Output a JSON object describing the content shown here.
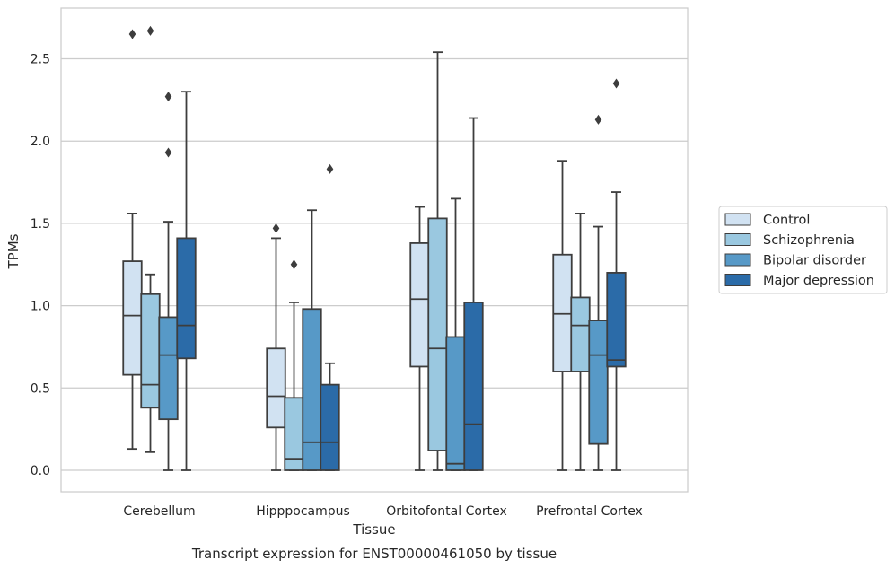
{
  "chart_data": {
    "type": "box",
    "title": "",
    "caption": "Transcript expression for ENST00000461050 by tissue",
    "xlabel": "Tissue",
    "ylabel": "TPMs",
    "ylim": [
      -0.13,
      2.8
    ],
    "yticks": [
      0.0,
      0.5,
      1.0,
      1.5,
      2.0,
      2.5
    ],
    "ytick_labels": [
      "0.0",
      "0.5",
      "1.0",
      "1.5",
      "2.0",
      "2.5"
    ],
    "grid": "horizontal",
    "legend_position": "right",
    "categories": [
      "Cerebellum",
      "Hipppocampus",
      "Orbitofontal Cortex",
      "Prefrontal Cortex"
    ],
    "series": [
      {
        "name": "Control",
        "color": "#d1e2f2",
        "boxes": [
          {
            "whislo": 0.13,
            "q1": 0.58,
            "med": 0.94,
            "q3": 1.27,
            "whishi": 1.56,
            "fliers": [
              2.65
            ]
          },
          {
            "whislo": 0.0,
            "q1": 0.26,
            "med": 0.45,
            "q3": 0.74,
            "whishi": 1.41,
            "fliers": [
              1.47
            ]
          },
          {
            "whislo": 0.0,
            "q1": 0.63,
            "med": 1.04,
            "q3": 1.38,
            "whishi": 1.6,
            "fliers": []
          },
          {
            "whislo": 0.0,
            "q1": 0.6,
            "med": 0.95,
            "q3": 1.31,
            "whishi": 1.88,
            "fliers": []
          }
        ]
      },
      {
        "name": "Schizophrenia",
        "color": "#9ac8e0",
        "boxes": [
          {
            "whislo": 0.11,
            "q1": 0.38,
            "med": 0.52,
            "q3": 1.07,
            "whishi": 1.19,
            "fliers": [
              2.67
            ]
          },
          {
            "whislo": 0.0,
            "q1": 0.0,
            "med": 0.07,
            "q3": 0.44,
            "whishi": 1.02,
            "fliers": [
              1.25
            ]
          },
          {
            "whislo": 0.0,
            "q1": 0.12,
            "med": 0.74,
            "q3": 1.53,
            "whishi": 2.54,
            "fliers": []
          },
          {
            "whislo": 0.0,
            "q1": 0.6,
            "med": 0.88,
            "q3": 1.05,
            "whishi": 1.56,
            "fliers": []
          }
        ]
      },
      {
        "name": "Bipolar disorder",
        "color": "#5799c7",
        "boxes": [
          {
            "whislo": 0.0,
            "q1": 0.31,
            "med": 0.7,
            "q3": 0.93,
            "whishi": 1.51,
            "fliers": [
              1.93,
              2.27
            ]
          },
          {
            "whislo": 0.0,
            "q1": 0.0,
            "med": 0.17,
            "q3": 0.98,
            "whishi": 1.58,
            "fliers": []
          },
          {
            "whislo": 0.0,
            "q1": 0.0,
            "med": 0.04,
            "q3": 0.81,
            "whishi": 1.65,
            "fliers": []
          },
          {
            "whislo": 0.0,
            "q1": 0.16,
            "med": 0.7,
            "q3": 0.91,
            "whishi": 1.48,
            "fliers": [
              2.13
            ]
          }
        ]
      },
      {
        "name": "Major depression",
        "color": "#2b6ba8",
        "boxes": [
          {
            "whislo": 0.0,
            "q1": 0.68,
            "med": 0.88,
            "q3": 1.41,
            "whishi": 2.3,
            "fliers": []
          },
          {
            "whislo": 0.0,
            "q1": 0.0,
            "med": 0.17,
            "q3": 0.52,
            "whishi": 0.65,
            "fliers": [
              1.83
            ]
          },
          {
            "whislo": 0.0,
            "q1": 0.0,
            "med": 0.28,
            "q3": 1.02,
            "whishi": 2.14,
            "fliers": []
          },
          {
            "whislo": 0.0,
            "q1": 0.63,
            "med": 0.67,
            "q3": 1.2,
            "whishi": 1.69,
            "fliers": [
              2.35
            ]
          }
        ]
      }
    ]
  }
}
